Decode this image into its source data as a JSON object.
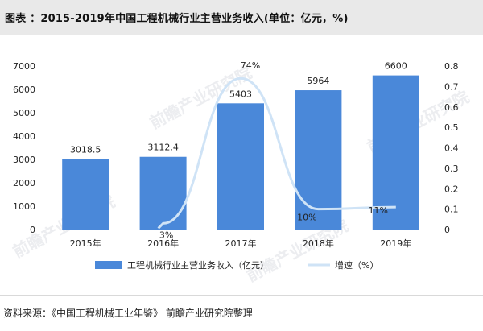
{
  "header": {
    "title": "图表 ：2015-2019年中国工程机械行业主营业务收入(单位：亿元，%)"
  },
  "watermark": {
    "text": "前瞻产业研究院"
  },
  "footer": {
    "source": "资料来源：《中国工程机械工业年鉴》 前瞻产业研究院整理"
  },
  "colors": {
    "bar": "#4a88d9",
    "line": "#cfe3f6",
    "title_bg": "#e9e9e9"
  },
  "chart_data": {
    "type": "bar",
    "title": "2015-2019年中国工程机械行业主营业务收入(单位：亿元，%)",
    "categories": [
      "2015年",
      "2016年",
      "2017年",
      "2018年",
      "2019年"
    ],
    "series": [
      {
        "name": "工程机械行业主营业务收入（亿元）",
        "type": "bar",
        "axis": "left",
        "values": [
          3018.5,
          3112.4,
          5403,
          5964,
          6600
        ],
        "labels": [
          "3018.5",
          "3112.4",
          "5403",
          "5964",
          "6600"
        ]
      },
      {
        "name": "增速（%）",
        "type": "line",
        "axis": "right",
        "values": [
          null,
          0.03,
          0.74,
          0.1,
          0.11
        ],
        "labels": [
          "",
          "3%",
          "74%",
          "10%",
          "11%"
        ]
      }
    ],
    "y_left": {
      "lim": [
        0,
        7000
      ],
      "ticks": [
        "0",
        "1000",
        "2000",
        "3000",
        "4000",
        "5000",
        "6000",
        "7000"
      ]
    },
    "y_right": {
      "lim": [
        0,
        0.8
      ],
      "ticks": [
        "0",
        "0.1",
        "0.2",
        "0.3",
        "0.4",
        "0.5",
        "0.6",
        "0.7",
        "0.8"
      ]
    },
    "grid": false,
    "legend_position": "bottom"
  }
}
